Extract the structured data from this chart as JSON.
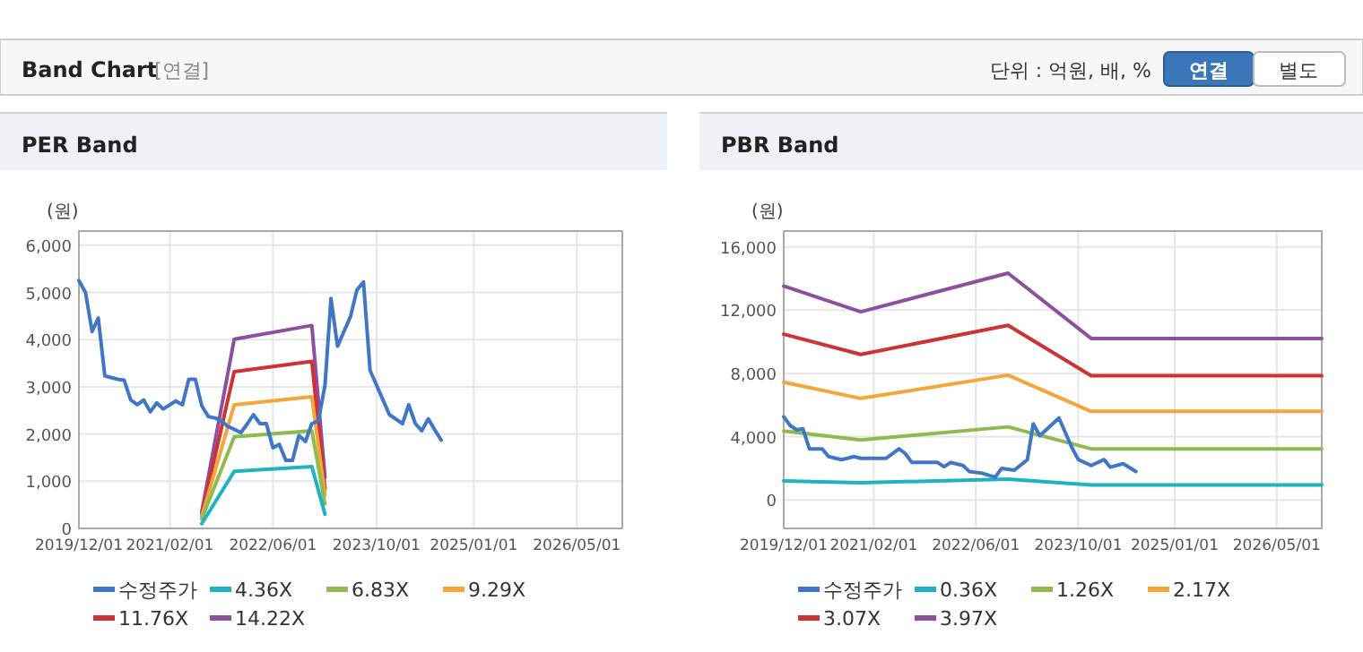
{
  "chart_data": [
    {
      "type": "other",
      "title": "Band Chart",
      "annotations": [
        "[연결]",
        "단위 : 억원, 배, %",
        "연결",
        "별도"
      ]
    },
    {
      "type": "line",
      "title": "PER Band",
      "ylabel": "(원)",
      "xlim": [
        "2019-12-01",
        "2026-12-01"
      ],
      "ylim": [
        0,
        6300
      ],
      "xticks": [
        {
          "value": "2019-12-01",
          "label": "2019/12/01"
        },
        {
          "value": "2021-02-01",
          "label": "2021/02/01"
        },
        {
          "value": "2022-06-01",
          "label": "2022/06/01"
        },
        {
          "value": "2023-10-01",
          "label": "2023/10/01"
        },
        {
          "value": "2025-01-01",
          "label": "2025/01/01"
        },
        {
          "value": "2026-05-01",
          "label": "2026/05/01"
        }
      ],
      "yticks": [
        {
          "value": 0,
          "label": "0"
        },
        {
          "value": 1000,
          "label": "1,000"
        },
        {
          "value": 2000,
          "label": "2,000"
        },
        {
          "value": 3000,
          "label": "3,000"
        },
        {
          "value": 4000,
          "label": "4,000"
        },
        {
          "value": 5000,
          "label": "5,000"
        },
        {
          "value": 6000,
          "label": "6,000"
        }
      ],
      "grid": true,
      "legend": "bottom",
      "series": [
        {
          "name": "수정주가",
          "color": "#3f76c6",
          "x": [
            "2019-12",
            "2020-01",
            "2020-02",
            "2020-03",
            "2020-04",
            "2020-06",
            "2020-07",
            "2020-08",
            "2020-09",
            "2020-10",
            "2020-11",
            "2020-12",
            "2021-01",
            "2021-03",
            "2021-04",
            "2021-05",
            "2021-06",
            "2021-07",
            "2021-08",
            "2021-09",
            "2021-10",
            "2021-11",
            "2022-01",
            "2022-02",
            "2022-03",
            "2022-04",
            "2022-05",
            "2022-06",
            "2022-07",
            "2022-08",
            "2022-09",
            "2022-10",
            "2022-11",
            "2022-12",
            "2023-01",
            "2023-02",
            "2023-03",
            "2023-04",
            "2023-06",
            "2023-07",
            "2023-08",
            "2023-09",
            "2023-11",
            "2023-12",
            "2024-02",
            "2024-03",
            "2024-04",
            "2024-05",
            "2024-06",
            "2024-07",
            "2024-08"
          ],
          "values": [
            5250,
            5000,
            4170,
            4460,
            3230,
            3160,
            3140,
            2720,
            2620,
            2720,
            2470,
            2660,
            2530,
            2700,
            2620,
            3160,
            3160,
            2600,
            2370,
            2340,
            2280,
            2160,
            2030,
            2220,
            2410,
            2220,
            2220,
            1710,
            1780,
            1440,
            1440,
            1970,
            1840,
            2220,
            2280,
            3040,
            4870,
            3860,
            4490,
            5050,
            5220,
            3350,
            2720,
            2410,
            2220,
            2620,
            2220,
            2070,
            2320,
            2090,
            1870
          ]
        },
        {
          "name": "4.36X",
          "color": "#1fb2c0",
          "x": [
            "2021-07",
            "2021-12",
            "2022-12",
            "2023-02"
          ],
          "values": [
            100,
            1210,
            1310,
            300
          ]
        },
        {
          "name": "6.83X",
          "color": "#8dbb4f",
          "x": [
            "2021-07",
            "2021-12",
            "2022-12",
            "2023-02"
          ],
          "values": [
            200,
            1940,
            2070,
            520
          ]
        },
        {
          "name": "9.29X",
          "color": "#f4a638",
          "x": [
            "2021-07",
            "2021-12",
            "2022-12",
            "2023-02"
          ],
          "values": [
            250,
            2620,
            2790,
            700
          ]
        },
        {
          "name": "11.76X",
          "color": "#cc3333",
          "x": [
            "2021-07",
            "2021-12",
            "2022-12",
            "2023-02"
          ],
          "values": [
            300,
            3320,
            3540,
            830
          ]
        },
        {
          "name": "14.22X",
          "color": "#8e4fa0",
          "x": [
            "2021-07",
            "2021-12",
            "2022-12",
            "2023-02"
          ],
          "values": [
            350,
            4010,
            4300,
            1080
          ]
        }
      ]
    },
    {
      "type": "line",
      "title": "PBR Band",
      "ylabel": "(원)",
      "xlim": [
        "2019-12-01",
        "2026-12-01"
      ],
      "ylim": [
        -1800,
        17000
      ],
      "xticks": [
        {
          "value": "2019-12-01",
          "label": "2019/12/01"
        },
        {
          "value": "2021-02-01",
          "label": "2021/02/01"
        },
        {
          "value": "2022-06-01",
          "label": "2022/06/01"
        },
        {
          "value": "2023-10-01",
          "label": "2023/10/01"
        },
        {
          "value": "2025-01-01",
          "label": "2025/01/01"
        },
        {
          "value": "2026-05-01",
          "label": "2026/05/01"
        }
      ],
      "yticks": [
        {
          "value": 0,
          "label": "0"
        },
        {
          "value": 4000,
          "label": "4,000"
        },
        {
          "value": 8000,
          "label": "8,000"
        },
        {
          "value": 12000,
          "label": "12,000"
        },
        {
          "value": 16000,
          "label": "16,000"
        }
      ],
      "grid": true,
      "legend": "bottom",
      "series": [
        {
          "name": "수정주가",
          "color": "#3f76c6",
          "x": [
            "2019-12",
            "2020-01",
            "2020-02",
            "2020-03",
            "2020-04",
            "2020-06",
            "2020-07",
            "2020-09",
            "2020-11",
            "2020-12",
            "2021-04",
            "2021-06",
            "2021-07",
            "2021-08",
            "2021-12",
            "2022-01",
            "2022-02",
            "2022-04",
            "2022-05",
            "2022-07",
            "2022-09",
            "2022-10",
            "2022-12",
            "2023-02",
            "2023-03",
            "2023-04",
            "2023-07",
            "2023-09",
            "2023-10",
            "2023-12",
            "2024-02",
            "2024-03",
            "2024-05",
            "2024-07"
          ],
          "values": [
            5260,
            4700,
            4430,
            4500,
            3230,
            3230,
            2740,
            2550,
            2740,
            2630,
            2630,
            3230,
            2930,
            2370,
            2370,
            2100,
            2370,
            2180,
            1800,
            1690,
            1430,
            1990,
            1880,
            2550,
            4810,
            4060,
            5180,
            3300,
            2550,
            2180,
            2550,
            2070,
            2290,
            1800
          ]
        },
        {
          "name": "0.36X",
          "color": "#1fb2c0",
          "x": [
            "2019-12",
            "2020-12",
            "2022-11",
            "2023-12",
            "2026-12"
          ],
          "values": [
            1200,
            1090,
            1310,
            940,
            940
          ]
        },
        {
          "name": "1.26X",
          "color": "#8dbb4f",
          "x": [
            "2019-12",
            "2020-12",
            "2022-11",
            "2023-12",
            "2026-12"
          ],
          "values": [
            4360,
            3790,
            4620,
            3230,
            3230
          ]
        },
        {
          "name": "2.17X",
          "color": "#f4a638",
          "x": [
            "2019-12",
            "2020-12",
            "2022-11",
            "2023-12",
            "2026-12"
          ],
          "values": [
            7440,
            6420,
            7890,
            5600,
            5600
          ]
        },
        {
          "name": "3.07X",
          "color": "#cc3333",
          "x": [
            "2019-12",
            "2020-12",
            "2022-11",
            "2023-12",
            "2026-12"
          ],
          "values": [
            10480,
            9200,
            11040,
            7850,
            7850
          ]
        },
        {
          "name": "3.97X",
          "color": "#8e4fa0",
          "x": [
            "2019-12",
            "2020-12",
            "2022-11",
            "2023-12",
            "2026-12"
          ],
          "values": [
            13520,
            11900,
            14340,
            10210,
            10210
          ]
        }
      ]
    }
  ]
}
